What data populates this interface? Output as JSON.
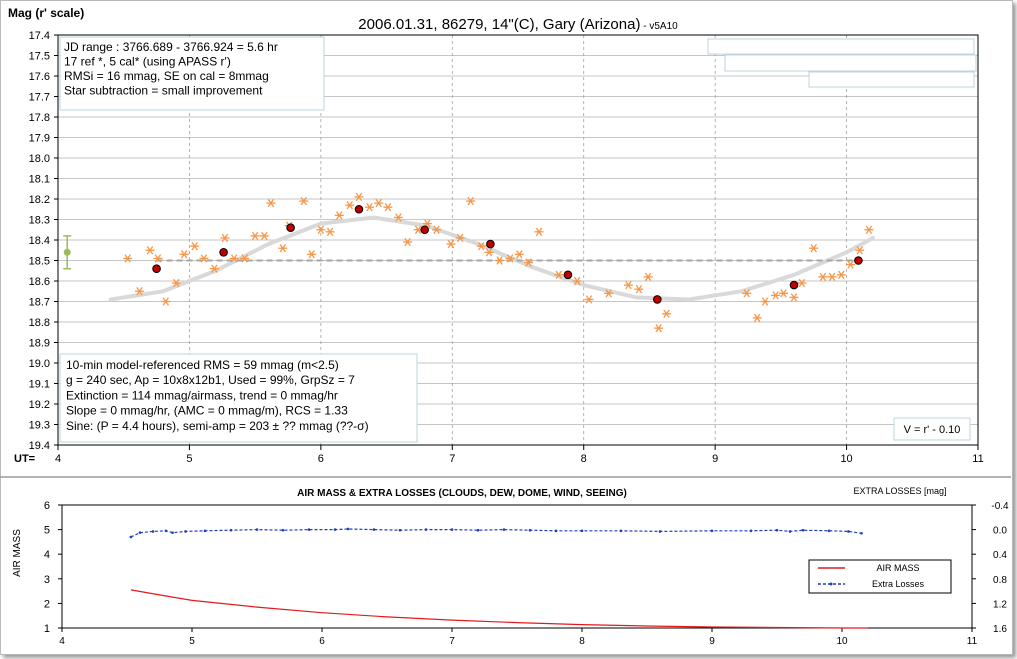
{
  "chart_data": [
    {
      "type": "scatter",
      "title": "2006.01.31, 86279, 14\"(C), Gary (Arizona)",
      "title_suffix": " - v5A10",
      "ylabel": "Mag (r' scale)",
      "xlabel": "UT=",
      "xlim": [
        4,
        11
      ],
      "ylim": [
        17.4,
        19.4
      ],
      "y_inverted": true,
      "x_ticks": [
        "4",
        "5",
        "6",
        "7",
        "8",
        "9",
        "10",
        "11"
      ],
      "y_ticks": [
        "17.4",
        "17.5",
        "17.6",
        "17.7",
        "17.8",
        "17.9",
        "18.0",
        "18.1",
        "18.2",
        "18.3",
        "18.4",
        "18.5",
        "18.6",
        "18.7",
        "18.8",
        "18.9",
        "19.0",
        "19.1",
        "19.2",
        "19.3",
        "19.4"
      ],
      "grid": true,
      "info_top": [
        "JD range : 3766.689 - 3766.924 = 5.6 hr",
        " 17 ref *, 5 cal* (using APASS r')",
        "RMSi = 16 mmag, SE on cal = 8mmag",
        "Star subtraction = small improvement"
      ],
      "info_bottom": [
        "10-min model-referenced RMS = 59 mmag (m<2.5)",
        "g = 240 sec, Ap = 10x8x12b1, Used = 99%,  GrpSz = 7",
        "Extinction = 114 mmag/airmass, trend = 0 mmag/hr",
        "Slope = 0 mmag/hr, (AMC = 0 mmag/m), RCS = 1.33",
        "Sine: (P = 4.4 hours), semi-amp = 203 ± ?? mmag (??-σ)"
      ],
      "note": "V = r' - 0.10",
      "reference_level": 18.5,
      "error_bar": {
        "x": 4.07,
        "y": 18.46,
        "err": 0.08,
        "color": "#9bbb59"
      },
      "colors": {
        "individual": "#f79646",
        "group": "#c00000",
        "model": "#d9d9d9",
        "reference": "#a6a6a6"
      },
      "series": [
        {
          "marker": "asterisk",
          "points": [
            [
              4.53,
              18.49
            ],
            [
              4.62,
              18.65
            ],
            [
              4.7,
              18.45
            ],
            [
              4.76,
              18.49
            ],
            [
              4.82,
              18.7
            ],
            [
              4.9,
              18.61
            ],
            [
              4.96,
              18.47
            ],
            [
              5.04,
              18.43
            ],
            [
              5.11,
              18.49
            ],
            [
              5.19,
              18.54
            ],
            [
              5.27,
              18.39
            ],
            [
              5.34,
              18.49
            ],
            [
              5.42,
              18.49
            ],
            [
              5.5,
              18.38
            ],
            [
              5.57,
              18.38
            ],
            [
              5.62,
              18.22
            ],
            [
              5.71,
              18.44
            ],
            [
              5.76,
              18.33
            ],
            [
              5.87,
              18.21
            ],
            [
              5.93,
              18.47
            ],
            [
              6.0,
              18.35
            ],
            [
              6.07,
              18.36
            ],
            [
              6.14,
              18.28
            ],
            [
              6.22,
              18.23
            ],
            [
              6.29,
              18.19
            ],
            [
              6.37,
              18.24
            ],
            [
              6.44,
              18.22
            ],
            [
              6.51,
              18.24
            ],
            [
              6.59,
              18.29
            ],
            [
              6.66,
              18.41
            ],
            [
              6.74,
              18.35
            ],
            [
              6.81,
              18.32
            ],
            [
              6.88,
              18.35
            ],
            [
              6.99,
              18.42
            ],
            [
              7.06,
              18.39
            ],
            [
              7.14,
              18.21
            ],
            [
              7.22,
              18.43
            ],
            [
              7.28,
              18.46
            ],
            [
              7.36,
              18.5
            ],
            [
              7.44,
              18.49
            ],
            [
              7.51,
              18.47
            ],
            [
              7.58,
              18.51
            ],
            [
              7.66,
              18.36
            ],
            [
              7.81,
              18.57
            ],
            [
              7.95,
              18.6
            ],
            [
              8.04,
              18.69
            ],
            [
              8.19,
              18.66
            ],
            [
              8.34,
              18.62
            ],
            [
              8.42,
              18.64
            ],
            [
              8.49,
              18.58
            ],
            [
              8.57,
              18.83
            ],
            [
              8.63,
              18.76
            ],
            [
              9.24,
              18.66
            ],
            [
              9.32,
              18.78
            ],
            [
              9.38,
              18.7
            ],
            [
              9.46,
              18.67
            ],
            [
              9.52,
              18.66
            ],
            [
              9.6,
              18.68
            ],
            [
              9.66,
              18.61
            ],
            [
              9.75,
              18.44
            ],
            [
              9.82,
              18.58
            ],
            [
              9.89,
              18.58
            ],
            [
              9.96,
              18.57
            ],
            [
              10.03,
              18.52
            ],
            [
              10.1,
              18.45
            ],
            [
              10.17,
              18.35
            ]
          ]
        },
        {
          "marker": "dot",
          "points": [
            [
              4.75,
              18.54
            ],
            [
              5.26,
              18.46
            ],
            [
              5.77,
              18.34
            ],
            [
              6.29,
              18.25
            ],
            [
              6.79,
              18.35
            ],
            [
              7.29,
              18.42
            ],
            [
              7.88,
              18.57
            ],
            [
              8.56,
              18.69
            ],
            [
              9.6,
              18.62
            ],
            [
              10.09,
              18.5
            ]
          ]
        },
        {
          "marker": "curve",
          "points": [
            [
              4.4,
              18.69
            ],
            [
              4.8,
              18.65
            ],
            [
              5.2,
              18.55
            ],
            [
              5.6,
              18.42
            ],
            [
              6.0,
              18.32
            ],
            [
              6.4,
              18.29
            ],
            [
              6.8,
              18.33
            ],
            [
              7.2,
              18.42
            ],
            [
              7.6,
              18.53
            ],
            [
              8.0,
              18.62
            ],
            [
              8.4,
              18.68
            ],
            [
              8.8,
              18.69
            ],
            [
              9.2,
              18.65
            ],
            [
              9.6,
              18.57
            ],
            [
              10.0,
              18.46
            ],
            [
              10.2,
              18.39
            ]
          ]
        }
      ]
    },
    {
      "type": "line",
      "title": "AIR MASS & EXTRA LOSSES (CLOUDS, DEW, DOME, WIND, SEEING)",
      "right_axis_title": "EXTRA LOSSES [mag]",
      "ylabel": "AIR MASS",
      "xlim": [
        4,
        11
      ],
      "ylim": [
        1,
        6
      ],
      "y2lim": [
        -0.4,
        1.6
      ],
      "y2_inverted": true,
      "x_ticks": [
        "4",
        "5",
        "6",
        "7",
        "8",
        "9",
        "10",
        "11"
      ],
      "y_ticks": [
        "6",
        "5",
        "4",
        "3",
        "2",
        "1"
      ],
      "y2_ticks": [
        "-0.4",
        "0.0",
        "0.4",
        "0.8",
        "1.2",
        "1.6"
      ],
      "colors": {
        "air_mass": "#e31a1c",
        "extra_losses": "#1f3fbf"
      },
      "series": [
        {
          "name": "AIR MASS",
          "axis": "left",
          "points": [
            [
              4.53,
              2.55
            ],
            [
              4.8,
              2.3
            ],
            [
              5.0,
              2.12
            ],
            [
              5.5,
              1.85
            ],
            [
              6.0,
              1.62
            ],
            [
              6.5,
              1.45
            ],
            [
              7.0,
              1.32
            ],
            [
              7.5,
              1.22
            ],
            [
              8.0,
              1.14
            ],
            [
              8.5,
              1.08
            ],
            [
              9.0,
              1.04
            ],
            [
              9.5,
              1.02
            ],
            [
              10.0,
              1.0
            ],
            [
              10.2,
              1.0
            ]
          ]
        },
        {
          "name": "Extra Losses",
          "axis": "right",
          "points": [
            [
              4.53,
              0.12
            ],
            [
              4.6,
              0.05
            ],
            [
              4.7,
              0.03
            ],
            [
              4.8,
              0.02
            ],
            [
              4.85,
              0.05
            ],
            [
              4.95,
              0.03
            ],
            [
              5.1,
              0.02
            ],
            [
              5.3,
              0.01
            ],
            [
              5.5,
              0.0
            ],
            [
              5.7,
              0.01
            ],
            [
              5.9,
              0.0
            ],
            [
              6.1,
              0.0
            ],
            [
              6.2,
              -0.01
            ],
            [
              6.4,
              0.0
            ],
            [
              6.6,
              0.01
            ],
            [
              6.8,
              0.0
            ],
            [
              7.0,
              0.0
            ],
            [
              7.2,
              0.01
            ],
            [
              7.4,
              0.0
            ],
            [
              7.6,
              0.01
            ],
            [
              7.8,
              0.02
            ],
            [
              8.0,
              0.02
            ],
            [
              8.3,
              0.02
            ],
            [
              8.6,
              0.03
            ],
            [
              9.0,
              0.02
            ],
            [
              9.3,
              0.02
            ],
            [
              9.5,
              0.01
            ],
            [
              9.6,
              0.03
            ],
            [
              9.7,
              0.01
            ],
            [
              9.9,
              0.02
            ],
            [
              10.05,
              0.03
            ],
            [
              10.15,
              0.06
            ]
          ]
        }
      ]
    }
  ]
}
